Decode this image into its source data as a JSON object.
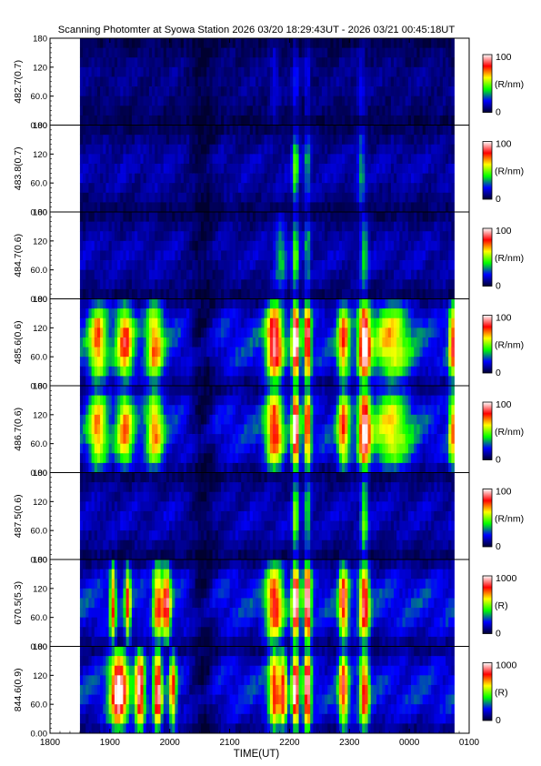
{
  "title": "Scanning Photomter at Syowa Station 2026 03/20 18:29:43UT - 2026 03/21 00:45:18UT",
  "chart_data": {
    "type": "heatmap",
    "title": "Scanning Photomter at Syowa Station 2026 03/20 18:29:43UT - 2026 03/21 00:45:18UT",
    "xlabel": "TIME(UT)",
    "x_ticks": [
      "1800",
      "1900",
      "2000",
      "2100",
      "2200",
      "2300",
      "0000",
      "0100"
    ],
    "x_range_hours": [
      18.0,
      25.0
    ],
    "data_coverage_hours": [
      18.5,
      24.75
    ],
    "y_range": [
      0,
      180
    ],
    "y_ticks": [
      "0.00",
      "60.0",
      "120",
      "180"
    ],
    "colormap": [
      "#000030",
      "#0000ff",
      "#00ff00",
      "#ffff00",
      "#ff0000",
      "#ffffff"
    ],
    "panels": [
      {
        "ylabel": "482.7(0.7)",
        "colorbar_max": "100",
        "colorbar_min": "0",
        "unit": "(R/nm)",
        "intensity_scale": 0.28,
        "features": [
          {
            "t": 21.75,
            "w": 0.06,
            "a": 0.35
          },
          {
            "t": 22.1,
            "w": 0.04,
            "a": 0.6
          },
          {
            "t": 22.3,
            "w": 0.04,
            "a": 0.5
          },
          {
            "t": 23.2,
            "w": 0.06,
            "a": 0.45
          }
        ]
      },
      {
        "ylabel": "483.8(0.7)",
        "colorbar_max": "100",
        "colorbar_min": "0",
        "unit": "(R/nm)",
        "intensity_scale": 0.4,
        "features": [
          {
            "t": 22.1,
            "w": 0.05,
            "a": 0.9
          },
          {
            "t": 22.3,
            "w": 0.05,
            "a": 0.6
          },
          {
            "t": 23.2,
            "w": 0.06,
            "a": 0.55
          }
        ]
      },
      {
        "ylabel": "484.7(0.6)",
        "colorbar_max": "100",
        "colorbar_min": "0",
        "unit": "(R/nm)",
        "intensity_scale": 0.42,
        "features": [
          {
            "t": 21.85,
            "w": 0.1,
            "a": 0.55
          },
          {
            "t": 22.1,
            "w": 0.05,
            "a": 0.9
          },
          {
            "t": 22.3,
            "w": 0.05,
            "a": 0.6
          },
          {
            "t": 23.25,
            "w": 0.06,
            "a": 0.7
          }
        ]
      },
      {
        "ylabel": "485.6(0.6)",
        "colorbar_max": "100",
        "colorbar_min": "0",
        "unit": "(R/nm)",
        "intensity_scale": 0.75,
        "features": [
          {
            "t": 18.8,
            "w": 0.15,
            "a": 0.7
          },
          {
            "t": 19.25,
            "w": 0.14,
            "a": 0.75
          },
          {
            "t": 19.75,
            "w": 0.14,
            "a": 0.7
          },
          {
            "t": 21.75,
            "w": 0.14,
            "a": 1.0
          },
          {
            "t": 22.1,
            "w": 0.06,
            "a": 1.2
          },
          {
            "t": 22.3,
            "w": 0.06,
            "a": 1.0
          },
          {
            "t": 22.9,
            "w": 0.1,
            "a": 0.75
          },
          {
            "t": 23.25,
            "w": 0.1,
            "a": 1.1
          },
          {
            "t": 23.7,
            "w": 0.3,
            "a": 0.6
          },
          {
            "t": 24.72,
            "w": 0.06,
            "a": 0.8
          }
        ]
      },
      {
        "ylabel": "486.7(0.6)",
        "colorbar_max": "100",
        "colorbar_min": "0",
        "unit": "(R/nm)",
        "intensity_scale": 0.72,
        "features": [
          {
            "t": 18.8,
            "w": 0.15,
            "a": 0.7
          },
          {
            "t": 19.25,
            "w": 0.14,
            "a": 0.7
          },
          {
            "t": 19.75,
            "w": 0.14,
            "a": 0.7
          },
          {
            "t": 21.75,
            "w": 0.14,
            "a": 0.9
          },
          {
            "t": 22.1,
            "w": 0.06,
            "a": 1.2
          },
          {
            "t": 22.3,
            "w": 0.06,
            "a": 0.9
          },
          {
            "t": 22.9,
            "w": 0.1,
            "a": 0.8
          },
          {
            "t": 23.25,
            "w": 0.1,
            "a": 1.1
          },
          {
            "t": 23.7,
            "w": 0.3,
            "a": 0.6
          },
          {
            "t": 24.72,
            "w": 0.06,
            "a": 0.7
          }
        ]
      },
      {
        "ylabel": "487.5(0.6)",
        "colorbar_max": "100",
        "colorbar_min": "0",
        "unit": "(R/nm)",
        "intensity_scale": 0.45,
        "features": [
          {
            "t": 22.1,
            "w": 0.05,
            "a": 0.9
          },
          {
            "t": 22.3,
            "w": 0.05,
            "a": 0.7
          },
          {
            "t": 23.25,
            "w": 0.06,
            "a": 0.8
          }
        ]
      },
      {
        "ylabel": "670.5(5.3)",
        "colorbar_max": "1000",
        "colorbar_min": "0",
        "unit": "(R)",
        "intensity_scale": 0.72,
        "features": [
          {
            "t": 19.05,
            "w": 0.05,
            "a": 0.8
          },
          {
            "t": 19.3,
            "w": 0.05,
            "a": 0.8
          },
          {
            "t": 19.8,
            "w": 0.08,
            "a": 0.8
          },
          {
            "t": 19.95,
            "w": 0.07,
            "a": 0.9
          },
          {
            "t": 21.75,
            "w": 0.14,
            "a": 0.9
          },
          {
            "t": 22.1,
            "w": 0.06,
            "a": 1.2
          },
          {
            "t": 22.3,
            "w": 0.06,
            "a": 1.2
          },
          {
            "t": 22.9,
            "w": 0.08,
            "a": 0.9
          },
          {
            "t": 23.25,
            "w": 0.08,
            "a": 1.0
          }
        ]
      },
      {
        "ylabel": "844.6(0.9)",
        "colorbar_max": "1000",
        "colorbar_min": "0",
        "unit": "(R)",
        "intensity_scale": 0.7,
        "features": [
          {
            "t": 19.15,
            "w": 0.15,
            "a": 1.2
          },
          {
            "t": 19.5,
            "w": 0.08,
            "a": 1.1
          },
          {
            "t": 19.8,
            "w": 0.07,
            "a": 1.1
          },
          {
            "t": 20.05,
            "w": 0.06,
            "a": 0.8
          },
          {
            "t": 21.75,
            "w": 0.1,
            "a": 0.9
          },
          {
            "t": 21.9,
            "w": 0.06,
            "a": 0.8
          },
          {
            "t": 22.1,
            "w": 0.06,
            "a": 1.2
          },
          {
            "t": 22.3,
            "w": 0.06,
            "a": 1.2
          },
          {
            "t": 22.9,
            "w": 0.08,
            "a": 0.9
          },
          {
            "t": 23.25,
            "w": 0.08,
            "a": 0.9
          }
        ]
      }
    ]
  }
}
